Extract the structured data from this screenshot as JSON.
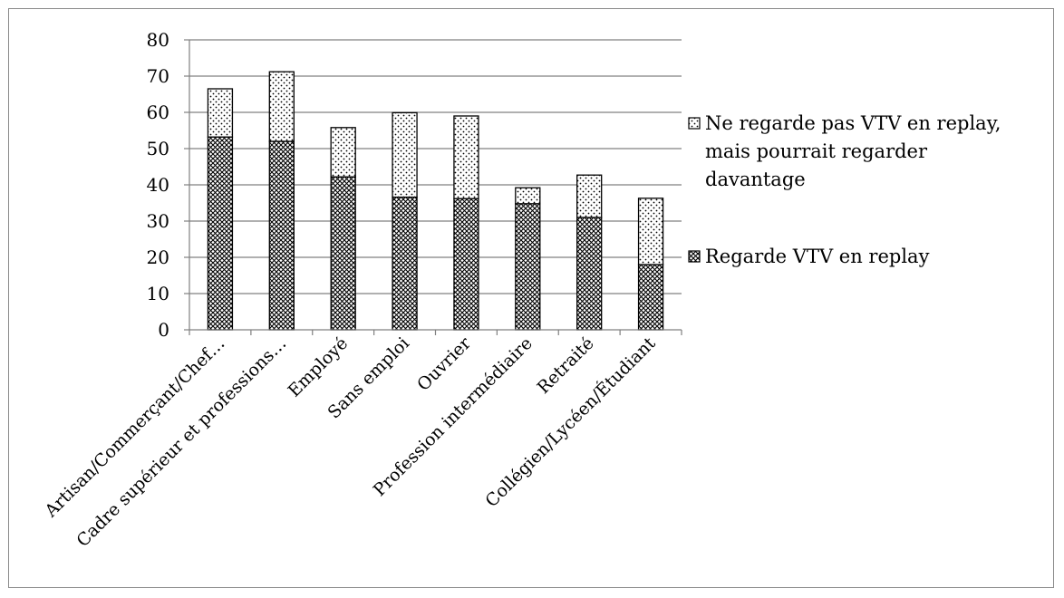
{
  "chart_data": {
    "type": "bar",
    "stacked": true,
    "title": "",
    "xlabel": "",
    "ylabel": "",
    "ylim": [
      0,
      80
    ],
    "yticks": [
      0,
      10,
      20,
      30,
      40,
      50,
      60,
      70,
      80
    ],
    "grid": true,
    "legend_position": "right",
    "categories": [
      "Artisan/Commerçant/Chef…",
      "Cadre supérieur et professions…",
      "Employé",
      "Sans emploi",
      "Ouvrier",
      "Profession intermédiaire",
      "Retraité",
      "Collégien/Lycéen/Étudiant"
    ],
    "series": [
      {
        "name": "Regarde VTV en replay",
        "pattern": "crosshatch",
        "values": [
          53.2,
          52.0,
          42.2,
          36.6,
          36.2,
          34.8,
          31.0,
          18.0
        ]
      },
      {
        "name": "Ne regarde pas VTV en replay, mais pourrait regarder davantage",
        "pattern": "dots",
        "values": [
          13.3,
          19.2,
          13.6,
          23.3,
          22.8,
          4.4,
          11.7,
          18.3
        ]
      }
    ],
    "legend": {
      "items": [
        {
          "lines": [
            "Ne regarde pas VTV en replay,",
            "mais pourrait regarder",
            "davantage"
          ],
          "pattern": "dots"
        },
        {
          "lines": [
            "Regarde VTV en replay"
          ],
          "pattern": "crosshatch"
        }
      ]
    },
    "colors": {
      "grid": "#808080",
      "bar_stroke": "#000000",
      "frame": "#8a8a8a"
    }
  }
}
